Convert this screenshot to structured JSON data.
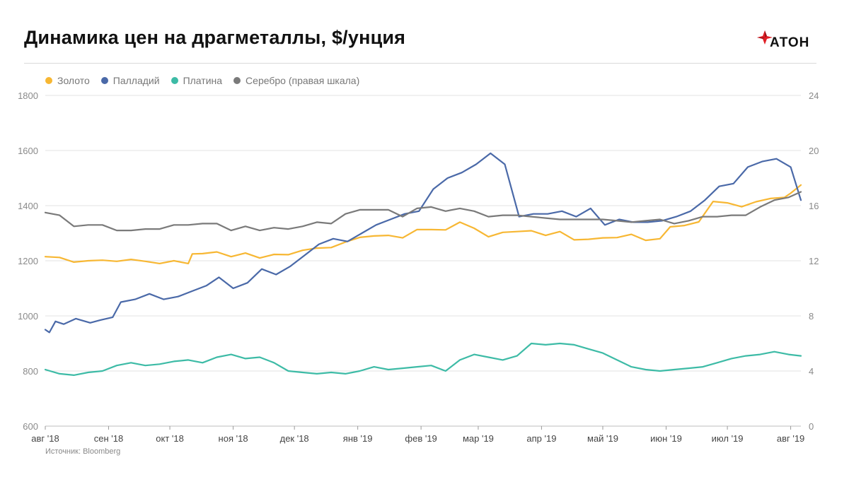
{
  "title": "Динамика цен на драгметаллы, $/унция",
  "logo": {
    "text": "АТОН",
    "icon": "aton-logo-icon",
    "color": "#e01f26"
  },
  "source": "Источник: Bloomberg",
  "chart_data": {
    "type": "line",
    "title": "Динамика цен на драгметаллы, $/унция",
    "x_ticks": [
      "авг '18",
      "сен '18",
      "окт '18",
      "ноя '18",
      "дек '18",
      "янв '19",
      "фев '19",
      "мар '19",
      "апр '19",
      "май '19",
      "июн '19",
      "июл '19",
      "авг '19"
    ],
    "x_range": [
      "2018-08-01",
      "2019-08-06"
    ],
    "ylim_left": [
      600,
      1800
    ],
    "yticks_left": [
      600,
      800,
      1000,
      1200,
      1400,
      1600,
      1800
    ],
    "ylim_right": [
      0,
      24
    ],
    "yticks_right": [
      0,
      4,
      8,
      12,
      16,
      20,
      24
    ],
    "grid": "horizontal",
    "legend_position": "top-left",
    "series": [
      {
        "name": "Золото",
        "color": "#f7b733",
        "axis": "left",
        "points": [
          [
            "2018-08-01",
            1215
          ],
          [
            "2018-08-08",
            1212
          ],
          [
            "2018-08-15",
            1195
          ],
          [
            "2018-08-22",
            1200
          ],
          [
            "2018-08-29",
            1202
          ],
          [
            "2018-09-05",
            1198
          ],
          [
            "2018-09-12",
            1205
          ],
          [
            "2018-09-19",
            1198
          ],
          [
            "2018-09-26",
            1190
          ],
          [
            "2018-10-03",
            1200
          ],
          [
            "2018-10-10",
            1190
          ],
          [
            "2018-10-12",
            1225
          ],
          [
            "2018-10-17",
            1226
          ],
          [
            "2018-10-24",
            1232
          ],
          [
            "2018-10-31",
            1215
          ],
          [
            "2018-11-07",
            1228
          ],
          [
            "2018-11-14",
            1210
          ],
          [
            "2018-11-21",
            1223
          ],
          [
            "2018-11-28",
            1222
          ],
          [
            "2018-12-05",
            1238
          ],
          [
            "2018-12-12",
            1246
          ],
          [
            "2018-12-19",
            1248
          ],
          [
            "2018-12-26",
            1268
          ],
          [
            "2019-01-02",
            1285
          ],
          [
            "2019-01-09",
            1290
          ],
          [
            "2019-01-16",
            1292
          ],
          [
            "2019-01-23",
            1283
          ],
          [
            "2019-01-30",
            1313
          ],
          [
            "2019-02-06",
            1313
          ],
          [
            "2019-02-13",
            1312
          ],
          [
            "2019-02-20",
            1340
          ],
          [
            "2019-02-27",
            1318
          ],
          [
            "2019-03-06",
            1287
          ],
          [
            "2019-03-13",
            1303
          ],
          [
            "2019-03-20",
            1306
          ],
          [
            "2019-03-27",
            1309
          ],
          [
            "2019-04-03",
            1292
          ],
          [
            "2019-04-10",
            1306
          ],
          [
            "2019-04-17",
            1276
          ],
          [
            "2019-04-24",
            1278
          ],
          [
            "2019-05-01",
            1283
          ],
          [
            "2019-05-08",
            1284
          ],
          [
            "2019-05-15",
            1296
          ],
          [
            "2019-05-22",
            1274
          ],
          [
            "2019-05-29",
            1280
          ],
          [
            "2019-06-03",
            1323
          ],
          [
            "2019-06-10",
            1328
          ],
          [
            "2019-06-17",
            1341
          ],
          [
            "2019-06-24",
            1415
          ],
          [
            "2019-07-01",
            1410
          ],
          [
            "2019-07-08",
            1396
          ],
          [
            "2019-07-15",
            1414
          ],
          [
            "2019-07-22",
            1426
          ],
          [
            "2019-07-29",
            1430
          ],
          [
            "2019-08-01",
            1445
          ],
          [
            "2019-08-06",
            1475
          ]
        ]
      },
      {
        "name": "Палладий",
        "color": "#4a69a8",
        "axis": "left",
        "points": [
          [
            "2018-08-01",
            950
          ],
          [
            "2018-08-03",
            940
          ],
          [
            "2018-08-06",
            980
          ],
          [
            "2018-08-10",
            970
          ],
          [
            "2018-08-16",
            990
          ],
          [
            "2018-08-23",
            975
          ],
          [
            "2018-08-28",
            985
          ],
          [
            "2018-09-03",
            995
          ],
          [
            "2018-09-07",
            1050
          ],
          [
            "2018-09-14",
            1060
          ],
          [
            "2018-09-21",
            1080
          ],
          [
            "2018-09-28",
            1060
          ],
          [
            "2018-10-05",
            1070
          ],
          [
            "2018-10-12",
            1090
          ],
          [
            "2018-10-19",
            1110
          ],
          [
            "2018-10-25",
            1140
          ],
          [
            "2018-11-01",
            1100
          ],
          [
            "2018-11-08",
            1120
          ],
          [
            "2018-11-15",
            1170
          ],
          [
            "2018-11-22",
            1150
          ],
          [
            "2018-11-29",
            1180
          ],
          [
            "2018-12-06",
            1220
          ],
          [
            "2018-12-13",
            1260
          ],
          [
            "2018-12-20",
            1280
          ],
          [
            "2018-12-27",
            1270
          ],
          [
            "2019-01-03",
            1300
          ],
          [
            "2019-01-10",
            1330
          ],
          [
            "2019-01-17",
            1350
          ],
          [
            "2019-01-24",
            1370
          ],
          [
            "2019-01-31",
            1380
          ],
          [
            "2019-02-07",
            1460
          ],
          [
            "2019-02-14",
            1500
          ],
          [
            "2019-02-21",
            1520
          ],
          [
            "2019-02-28",
            1550
          ],
          [
            "2019-03-07",
            1590
          ],
          [
            "2019-03-14",
            1550
          ],
          [
            "2019-03-21",
            1360
          ],
          [
            "2019-03-28",
            1370
          ],
          [
            "2019-04-04",
            1370
          ],
          [
            "2019-04-11",
            1380
          ],
          [
            "2019-04-18",
            1360
          ],
          [
            "2019-04-25",
            1390
          ],
          [
            "2019-05-02",
            1330
          ],
          [
            "2019-05-09",
            1350
          ],
          [
            "2019-05-16",
            1340
          ],
          [
            "2019-05-23",
            1340
          ],
          [
            "2019-05-30",
            1345
          ],
          [
            "2019-06-06",
            1360
          ],
          [
            "2019-06-13",
            1380
          ],
          [
            "2019-06-20",
            1420
          ],
          [
            "2019-06-27",
            1470
          ],
          [
            "2019-07-04",
            1480
          ],
          [
            "2019-07-11",
            1540
          ],
          [
            "2019-07-18",
            1560
          ],
          [
            "2019-07-25",
            1570
          ],
          [
            "2019-08-01",
            1540
          ],
          [
            "2019-08-06",
            1420
          ]
        ]
      },
      {
        "name": "Платина",
        "color": "#3dbba6",
        "axis": "left",
        "points": [
          [
            "2018-08-01",
            805
          ],
          [
            "2018-08-08",
            790
          ],
          [
            "2018-08-15",
            785
          ],
          [
            "2018-08-22",
            795
          ],
          [
            "2018-08-29",
            800
          ],
          [
            "2018-09-05",
            820
          ],
          [
            "2018-09-12",
            830
          ],
          [
            "2018-09-19",
            820
          ],
          [
            "2018-09-26",
            825
          ],
          [
            "2018-10-03",
            835
          ],
          [
            "2018-10-10",
            840
          ],
          [
            "2018-10-17",
            830
          ],
          [
            "2018-10-24",
            850
          ],
          [
            "2018-10-31",
            860
          ],
          [
            "2018-11-07",
            845
          ],
          [
            "2018-11-14",
            850
          ],
          [
            "2018-11-21",
            830
          ],
          [
            "2018-11-28",
            800
          ],
          [
            "2018-12-05",
            795
          ],
          [
            "2018-12-12",
            790
          ],
          [
            "2018-12-19",
            795
          ],
          [
            "2018-12-26",
            790
          ],
          [
            "2019-01-02",
            800
          ],
          [
            "2019-01-09",
            815
          ],
          [
            "2019-01-16",
            805
          ],
          [
            "2019-01-23",
            810
          ],
          [
            "2019-01-30",
            815
          ],
          [
            "2019-02-06",
            820
          ],
          [
            "2019-02-13",
            800
          ],
          [
            "2019-02-20",
            840
          ],
          [
            "2019-02-27",
            860
          ],
          [
            "2019-03-06",
            850
          ],
          [
            "2019-03-13",
            840
          ],
          [
            "2019-03-20",
            855
          ],
          [
            "2019-03-27",
            900
          ],
          [
            "2019-04-03",
            895
          ],
          [
            "2019-04-10",
            900
          ],
          [
            "2019-04-17",
            895
          ],
          [
            "2019-04-24",
            880
          ],
          [
            "2019-05-01",
            865
          ],
          [
            "2019-05-08",
            840
          ],
          [
            "2019-05-15",
            815
          ],
          [
            "2019-05-22",
            805
          ],
          [
            "2019-05-29",
            800
          ],
          [
            "2019-06-05",
            805
          ],
          [
            "2019-06-12",
            810
          ],
          [
            "2019-06-19",
            815
          ],
          [
            "2019-06-26",
            830
          ],
          [
            "2019-07-03",
            845
          ],
          [
            "2019-07-10",
            855
          ],
          [
            "2019-07-17",
            860
          ],
          [
            "2019-07-24",
            870
          ],
          [
            "2019-07-31",
            860
          ],
          [
            "2019-08-06",
            855
          ]
        ]
      },
      {
        "name": "Серебро (правая шкала)",
        "color": "#7a7a7a",
        "axis": "right",
        "points": [
          [
            "2018-08-01",
            15.5
          ],
          [
            "2018-08-08",
            15.3
          ],
          [
            "2018-08-15",
            14.5
          ],
          [
            "2018-08-22",
            14.6
          ],
          [
            "2018-08-29",
            14.6
          ],
          [
            "2018-09-05",
            14.2
          ],
          [
            "2018-09-12",
            14.2
          ],
          [
            "2018-09-19",
            14.3
          ],
          [
            "2018-09-26",
            14.3
          ],
          [
            "2018-10-03",
            14.6
          ],
          [
            "2018-10-10",
            14.6
          ],
          [
            "2018-10-17",
            14.7
          ],
          [
            "2018-10-24",
            14.7
          ],
          [
            "2018-10-31",
            14.2
          ],
          [
            "2018-11-07",
            14.5
          ],
          [
            "2018-11-14",
            14.2
          ],
          [
            "2018-11-21",
            14.4
          ],
          [
            "2018-11-28",
            14.3
          ],
          [
            "2018-12-05",
            14.5
          ],
          [
            "2018-12-12",
            14.8
          ],
          [
            "2018-12-19",
            14.7
          ],
          [
            "2018-12-26",
            15.4
          ],
          [
            "2019-01-02",
            15.7
          ],
          [
            "2019-01-09",
            15.7
          ],
          [
            "2019-01-16",
            15.7
          ],
          [
            "2019-01-23",
            15.2
          ],
          [
            "2019-01-30",
            15.8
          ],
          [
            "2019-02-06",
            15.9
          ],
          [
            "2019-02-13",
            15.6
          ],
          [
            "2019-02-20",
            15.8
          ],
          [
            "2019-02-27",
            15.6
          ],
          [
            "2019-03-06",
            15.2
          ],
          [
            "2019-03-13",
            15.3
          ],
          [
            "2019-03-20",
            15.3
          ],
          [
            "2019-03-27",
            15.2
          ],
          [
            "2019-04-03",
            15.1
          ],
          [
            "2019-04-10",
            15.0
          ],
          [
            "2019-04-17",
            15.0
          ],
          [
            "2019-04-24",
            15.0
          ],
          [
            "2019-05-01",
            15.0
          ],
          [
            "2019-05-08",
            14.9
          ],
          [
            "2019-05-15",
            14.8
          ],
          [
            "2019-05-22",
            14.9
          ],
          [
            "2019-05-29",
            15.0
          ],
          [
            "2019-06-05",
            14.7
          ],
          [
            "2019-06-12",
            14.9
          ],
          [
            "2019-06-19",
            15.2
          ],
          [
            "2019-06-26",
            15.2
          ],
          [
            "2019-07-03",
            15.3
          ],
          [
            "2019-07-10",
            15.3
          ],
          [
            "2019-07-17",
            15.9
          ],
          [
            "2019-07-24",
            16.4
          ],
          [
            "2019-07-31",
            16.6
          ],
          [
            "2019-08-06",
            17.0
          ]
        ]
      }
    ]
  }
}
